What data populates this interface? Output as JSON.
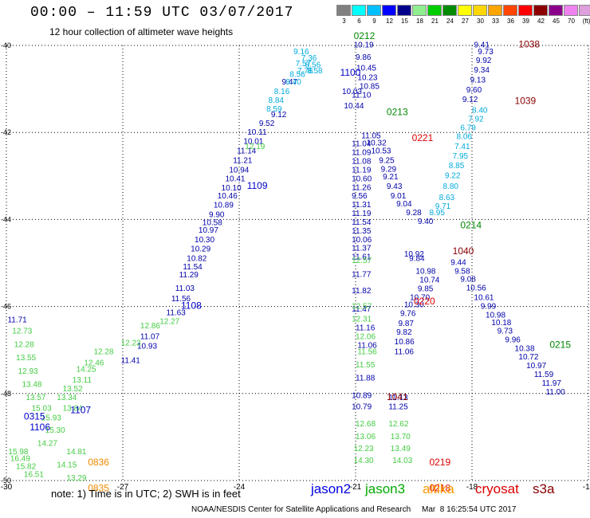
{
  "header": {
    "title": "00:00 – 11:59 UTC 03/07/2017",
    "subtitle": "12 hour collection of altimeter wave heights"
  },
  "scale": {
    "colors": [
      "#808080",
      "#00ffff",
      "#00bfff",
      "#0000ff",
      "#00008b",
      "#90ee90",
      "#00cd00",
      "#008b00",
      "#ffff00",
      "#ffd700",
      "#ffa500",
      "#ff4500",
      "#ff0000",
      "#8b0000",
      "#8b008b",
      "#ee82ee",
      "#dda0dd",
      "#f5f5f5"
    ],
    "labels": [
      "3",
      "6",
      "9",
      "12",
      "15",
      "18",
      "21",
      "24",
      "27",
      "30",
      "33",
      "36",
      "39",
      "42",
      "45",
      "70",
      "(ft)"
    ]
  },
  "map": {
    "x_ticks": [
      "-30",
      "-27",
      "-24",
      "-21",
      "-18",
      "-15"
    ],
    "y_ticks": [
      "-40",
      "-42",
      "-44",
      "-46",
      "-48",
      "-50"
    ],
    "tracks": [
      {
        "sat": "jason2",
        "color": "#0000aa",
        "points": [
          [
            -29.97,
            -46.36,
            "11.71"
          ],
          [
            -27.02,
            -50.25,
            "15.37"
          ],
          [
            -26.55,
            -46.75,
            "11.07"
          ],
          [
            -26.63,
            -46.97,
            "10.93"
          ],
          [
            -27.05,
            -47.3,
            "11.41"
          ],
          [
            -25.88,
            -46.2,
            "11.63"
          ],
          [
            -25.75,
            -45.88,
            "11.56"
          ],
          [
            -25.65,
            -45.64,
            "11.03"
          ],
          [
            -25.55,
            -45.33,
            "11.29"
          ],
          [
            -25.45,
            -45.15,
            "11.54"
          ],
          [
            -25.35,
            -44.95,
            "10.82"
          ],
          [
            -25.25,
            -44.73,
            "10.29"
          ],
          [
            -25.15,
            -44.52,
            "10.30"
          ],
          [
            -25.05,
            -44.3,
            "10.97"
          ],
          [
            -24.95,
            -44.13,
            "10.58"
          ],
          [
            -24.78,
            -43.95,
            "9.90"
          ],
          [
            -24.66,
            -43.73,
            "10.89"
          ],
          [
            -24.56,
            -43.52,
            "10.46"
          ],
          [
            -24.46,
            -43.33,
            "10.10"
          ],
          [
            -24.36,
            -43.12,
            "10.41"
          ],
          [
            -24.26,
            -42.92,
            "10.94"
          ],
          [
            -24.16,
            -42.7,
            "11.21"
          ],
          [
            -24.06,
            -42.48,
            "11.14"
          ],
          [
            -23.89,
            -42.26,
            "10.01"
          ],
          [
            -23.79,
            -42.05,
            "10.11"
          ],
          [
            -23.49,
            -41.85,
            "9.52"
          ],
          [
            -23.18,
            -41.65,
            "9.12"
          ],
          [
            -22.9,
            -40.9,
            "9.47"
          ],
          [
            -21.05,
            -40.05,
            "10.19"
          ],
          [
            -21.0,
            -40.33,
            "9.86"
          ],
          [
            -20.98,
            -40.58,
            "10.45"
          ],
          [
            -20.95,
            -40.8,
            "10.23"
          ],
          [
            -20.9,
            -41.0,
            "10.85"
          ],
          [
            -21.1,
            -41.2,
            "11.10"
          ],
          [
            -21.35,
            -41.12,
            "10.03"
          ],
          [
            -21.3,
            -41.45,
            "10.44"
          ],
          [
            -20.85,
            -42.13,
            "11.05"
          ],
          [
            -20.72,
            -42.3,
            "10.32"
          ],
          [
            -20.6,
            -42.48,
            "10.53"
          ],
          [
            -20.4,
            -42.7,
            "9.25"
          ],
          [
            -20.35,
            -42.9,
            "9.29"
          ],
          [
            -20.3,
            -43.08,
            "9.21"
          ],
          [
            -20.2,
            -43.3,
            "9.43"
          ],
          [
            -20.1,
            -43.52,
            "9.01"
          ],
          [
            -19.95,
            -43.7,
            "9.04"
          ],
          [
            -19.7,
            -43.9,
            "9.28"
          ],
          [
            -19.4,
            -44.1,
            "9.40"
          ],
          [
            -21.1,
            -42.32,
            "11.04"
          ],
          [
            -21.1,
            -42.52,
            "11.09"
          ],
          [
            -21.1,
            -42.72,
            "11.08"
          ],
          [
            -21.1,
            -42.92,
            "11.19"
          ],
          [
            -21.1,
            -43.12,
            "10.60"
          ],
          [
            -21.1,
            -43.32,
            "11.26"
          ],
          [
            -21.1,
            -43.52,
            "9.56"
          ],
          [
            -21.1,
            -43.72,
            "11.31"
          ],
          [
            -21.1,
            -43.92,
            "11.19"
          ],
          [
            -21.1,
            -44.12,
            "11.54"
          ],
          [
            -21.1,
            -44.32,
            "11.35"
          ],
          [
            -21.1,
            -44.52,
            "10.06"
          ],
          [
            -21.1,
            -44.72,
            "11.37"
          ],
          [
            -21.1,
            -44.92,
            "11.61"
          ],
          [
            -21.1,
            -45.32,
            "11.77"
          ],
          [
            -21.1,
            -45.7,
            "11.82"
          ],
          [
            -21.1,
            -46.12,
            "11.47"
          ],
          [
            -21.0,
            -46.55,
            "11.16"
          ],
          [
            -20.95,
            -46.95,
            "11.06"
          ],
          [
            -21.0,
            -47.7,
            "11.88"
          ],
          [
            -21.1,
            -48.1,
            "10.89"
          ],
          [
            -21.1,
            -48.36,
            "10.79"
          ],
          [
            -19.75,
            -44.85,
            "10.92"
          ],
          [
            -19.62,
            -44.95,
            "9.84"
          ],
          [
            -19.45,
            -45.25,
            "10.98"
          ],
          [
            -19.35,
            -45.45,
            "10.74"
          ],
          [
            -19.4,
            -45.65,
            "9.85"
          ],
          [
            -19.6,
            -45.85,
            "10.70"
          ],
          [
            -19.75,
            -46.02,
            "10.30"
          ],
          [
            -19.85,
            -46.22,
            "9.76"
          ],
          [
            -19.9,
            -46.45,
            "9.87"
          ],
          [
            -19.95,
            -46.65,
            "9.82"
          ],
          [
            -20.0,
            -46.87,
            "10.86"
          ],
          [
            -20.0,
            -47.1,
            "11.06"
          ],
          [
            -20.15,
            -48.15,
            "11.13"
          ],
          [
            -20.15,
            -48.36,
            "11.25"
          ],
          [
            -17.95,
            -40.05,
            "9.41"
          ],
          [
            -17.85,
            -40.2,
            "9.73"
          ],
          [
            -17.9,
            -40.4,
            "9.92"
          ],
          [
            -17.95,
            -40.62,
            "9.34"
          ],
          [
            -18.05,
            -40.85,
            "9.13"
          ],
          [
            -18.15,
            -41.08,
            "9.60"
          ],
          [
            -18.25,
            -41.3,
            "9.12"
          ],
          [
            -18.55,
            -45.05,
            "9.44"
          ],
          [
            -18.45,
            -45.25,
            "9.58"
          ],
          [
            -18.3,
            -45.43,
            "9.08"
          ],
          [
            -18.15,
            -45.63,
            "10.56"
          ],
          [
            -17.95,
            -45.85,
            "10.61"
          ],
          [
            -17.78,
            -46.05,
            "9.99"
          ],
          [
            -17.65,
            -46.25,
            "10.98"
          ],
          [
            -17.5,
            -46.43,
            "10.18"
          ],
          [
            -17.35,
            -46.62,
            "9.73"
          ],
          [
            -17.15,
            -46.82,
            "9.96"
          ],
          [
            -16.9,
            -47.02,
            "10.38"
          ],
          [
            -16.8,
            -47.22,
            "10.72"
          ],
          [
            -16.6,
            -47.42,
            "10.97"
          ],
          [
            -16.4,
            -47.62,
            "11.59"
          ],
          [
            -16.2,
            -47.82,
            "11.97"
          ],
          [
            -16.1,
            -48.02,
            "11.00"
          ]
        ]
      },
      {
        "sat": "jason2-light",
        "color": "#00aadd",
        "points": [
          [
            -22.6,
            -40.2,
            "9.16"
          ],
          [
            -22.4,
            -40.35,
            "7.36"
          ],
          [
            -22.55,
            -40.48,
            "7.57"
          ],
          [
            -22.3,
            -40.5,
            "8.56"
          ],
          [
            -22.5,
            -40.64,
            "7.78"
          ],
          [
            -22.25,
            -40.64,
            "8.58"
          ],
          [
            -22.7,
            -40.72,
            "8.56"
          ],
          [
            -22.8,
            -40.9,
            "8.40"
          ],
          [
            -23.1,
            -41.12,
            "8.16"
          ],
          [
            -23.25,
            -41.32,
            "8.84"
          ],
          [
            -23.3,
            -41.52,
            "8.59"
          ],
          [
            -18.0,
            -41.55,
            "8.40"
          ],
          [
            -18.1,
            -41.75,
            "7.92"
          ],
          [
            -18.3,
            -41.95,
            "6.79"
          ],
          [
            -18.4,
            -42.15,
            "8.06"
          ],
          [
            -18.45,
            -42.38,
            "7.41"
          ],
          [
            -18.5,
            -42.6,
            "7.95"
          ],
          [
            -18.6,
            -42.82,
            "8.85"
          ],
          [
            -18.7,
            -43.05,
            "9.22"
          ],
          [
            -18.75,
            -43.3,
            "8.80"
          ],
          [
            -18.85,
            -43.55,
            "8.63"
          ],
          [
            -18.95,
            -43.75,
            "9.71"
          ],
          [
            -19.1,
            -43.9,
            "8.95"
          ]
        ]
      },
      {
        "sat": "jason3",
        "color": "#44cc44",
        "points": [
          [
            -29.85,
            -46.62,
            "12.73"
          ],
          [
            -29.8,
            -46.93,
            "12.28"
          ],
          [
            -29.75,
            -47.23,
            "13.55"
          ],
          [
            -29.7,
            -47.55,
            "12.93"
          ],
          [
            -29.6,
            -47.85,
            "13.48"
          ],
          [
            -29.5,
            -48.15,
            "13.57"
          ],
          [
            -29.35,
            -48.4,
            "15.03"
          ],
          [
            -29.1,
            -48.62,
            "15.93"
          ],
          [
            -29.0,
            -48.9,
            "15.30"
          ],
          [
            -29.2,
            -49.2,
            "14.27"
          ],
          [
            -29.95,
            -49.4,
            "15.98"
          ],
          [
            -29.9,
            -49.55,
            "16.49"
          ],
          [
            -29.75,
            -49.73,
            "15.82"
          ],
          [
            -29.55,
            -49.92,
            "16.51"
          ],
          [
            -29.2,
            -50.1,
            "14.73"
          ],
          [
            -29.2,
            -50.3,
            "15.23"
          ],
          [
            -28.9,
            -50.5,
            "14.57"
          ],
          [
            -28.6,
            -50.2,
            "14.23"
          ],
          [
            -28.45,
            -50.0,
            "13.29"
          ],
          [
            -28.7,
            -49.7,
            "14.15"
          ],
          [
            -28.45,
            -49.4,
            "14.81"
          ],
          [
            -28.55,
            -48.4,
            "13.84"
          ],
          [
            -28.7,
            -48.15,
            "13.34"
          ],
          [
            -28.55,
            -47.95,
            "13.52"
          ],
          [
            -28.3,
            -47.75,
            "13.11"
          ],
          [
            -28.2,
            -47.5,
            "14.25"
          ],
          [
            -28.0,
            -47.35,
            "12.46"
          ],
          [
            -27.75,
            -47.1,
            "12.28"
          ],
          [
            -27.05,
            -46.9,
            "12.23"
          ],
          [
            -26.55,
            -46.5,
            "12.86"
          ],
          [
            -26.05,
            -46.4,
            "12.27"
          ],
          [
            -23.85,
            -42.38,
            "12.19"
          ],
          [
            -21.1,
            -45.0,
            "12.57"
          ],
          [
            -21.1,
            -46.05,
            "12.57"
          ],
          [
            -21.1,
            -46.35,
            "12.31"
          ],
          [
            -21.0,
            -46.75,
            "12.06"
          ],
          [
            -20.95,
            -47.1,
            "11.56"
          ],
          [
            -21.0,
            -47.4,
            "11.55"
          ],
          [
            -21.0,
            -48.75,
            "12.68"
          ],
          [
            -21.0,
            -49.05,
            "13.06"
          ],
          [
            -21.05,
            -49.32,
            "12.23"
          ],
          [
            -21.05,
            -49.6,
            "14.30"
          ],
          [
            -20.15,
            -48.75,
            "12.62"
          ],
          [
            -20.1,
            -49.05,
            "13.70"
          ],
          [
            -20.1,
            -49.32,
            "13.49"
          ],
          [
            -20.05,
            -49.6,
            "14.03"
          ]
        ]
      }
    ],
    "times": [
      {
        "lon": -21.05,
        "lat": -39.85,
        "t": "0212",
        "color": "#008800"
      },
      {
        "lon": -21.4,
        "lat": -40.7,
        "t": "1100",
        "color": "#0000cc"
      },
      {
        "lon": -20.2,
        "lat": -41.6,
        "t": "0213",
        "color": "#008800"
      },
      {
        "lon": -19.55,
        "lat": -42.2,
        "t": "0221",
        "color": "#dd0000"
      },
      {
        "lon": -23.8,
        "lat": -43.3,
        "t": "1109",
        "color": "#0000cc"
      },
      {
        "lon": -18.3,
        "lat": -44.2,
        "t": "0214",
        "color": "#008800"
      },
      {
        "lon": -18.5,
        "lat": -44.8,
        "t": "1040",
        "color": "#880000"
      },
      {
        "lon": -19.5,
        "lat": -45.95,
        "t": "0220",
        "color": "#dd0000"
      },
      {
        "lon": -25.5,
        "lat": -46.05,
        "t": "1108",
        "color": "#0000cc"
      },
      {
        "lon": -16.0,
        "lat": -46.95,
        "t": "0215",
        "color": "#008800"
      },
      {
        "lon": -20.2,
        "lat": -48.15,
        "t": "1041",
        "color": "#880000"
      },
      {
        "lon": -28.35,
        "lat": -48.45,
        "t": "1107",
        "color": "#0000cc"
      },
      {
        "lon": -29.55,
        "lat": -48.6,
        "t": "0315",
        "color": "#0000cc"
      },
      {
        "lon": -29.4,
        "lat": -48.85,
        "t": "1106",
        "color": "#0000cc"
      },
      {
        "lon": -27.9,
        "lat": -49.65,
        "t": "0836",
        "color": "#ee8800"
      },
      {
        "lon": -27.9,
        "lat": -50.25,
        "t": "0835",
        "color": "#ee8800"
      },
      {
        "lon": -19.1,
        "lat": -49.65,
        "t": "0219",
        "color": "#dd0000"
      },
      {
        "lon": -19.1,
        "lat": -50.25,
        "t": "0218",
        "color": "#dd0000"
      },
      {
        "lon": -16.8,
        "lat": -40.05,
        "t": "1038",
        "color": "#880000"
      },
      {
        "lon": -16.9,
        "lat": -41.35,
        "t": "1039",
        "color": "#880000"
      }
    ]
  },
  "notes": {
    "text": "note:  1) Time is in UTC;  2) SWH is in feet",
    "satellites": [
      {
        "name": "jason2",
        "color": "#0000dd"
      },
      {
        "name": "jason3",
        "color": "#00aa00"
      },
      {
        "name": "altika",
        "color": "#ff9900"
      },
      {
        "name": "cryosat",
        "color": "#dd0000"
      },
      {
        "name": "s3a",
        "color": "#880000"
      }
    ],
    "footer": "NOAA/NESDIS Center for Satellite Applications and Research     Mar  8 16:25:54 UTC 2017"
  }
}
